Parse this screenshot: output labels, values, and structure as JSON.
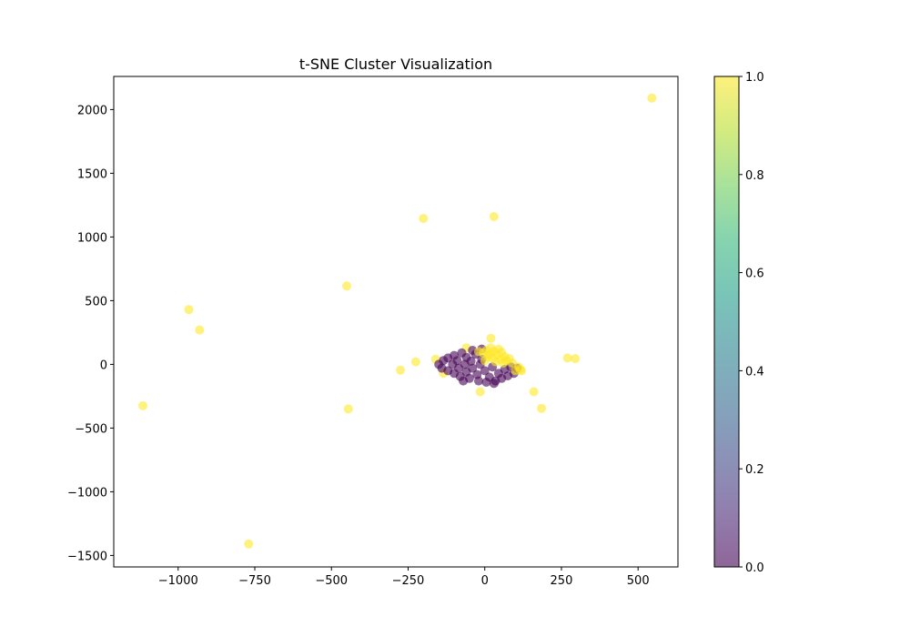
{
  "chart_data": {
    "type": "scatter",
    "title": "t-SNE Cluster Visualization",
    "xlabel": "",
    "ylabel": "",
    "xlim": [
      -1210,
      630
    ],
    "ylim": [
      -1590,
      2260
    ],
    "xticks": [
      -1000,
      -750,
      -500,
      -250,
      0,
      250,
      500
    ],
    "xtick_labels": [
      "−1000",
      "−750",
      "−500",
      "−250",
      "0",
      "250",
      "500"
    ],
    "yticks": [
      -1500,
      -1000,
      -500,
      0,
      500,
      1000,
      1500,
      2000
    ],
    "ytick_labels": [
      "−1500",
      "−1000",
      "−500",
      "0",
      "500",
      "1000",
      "1500",
      "2000"
    ],
    "grid": false,
    "marker_alpha": 0.6,
    "colorbar": {
      "colormap": "viridis",
      "range": [
        0.0,
        1.0
      ],
      "ticks": [
        0.0,
        0.2,
        0.4,
        0.6,
        0.8,
        1.0
      ],
      "tick_labels": [
        "0.0",
        "0.2",
        "0.4",
        "0.6",
        "0.8",
        "1.0"
      ],
      "colors": [
        "#440154",
        "#482878",
        "#3e4989",
        "#31688e",
        "#26828e",
        "#1f9e89",
        "#35b779",
        "#6ece58",
        "#b5de2b",
        "#fde725"
      ]
    },
    "points": [
      {
        "x": 545,
        "y": 2090,
        "c": 1
      },
      {
        "x": 30,
        "y": 1160,
        "c": 1
      },
      {
        "x": -200,
        "y": 1145,
        "c": 1
      },
      {
        "x": -450,
        "y": 615,
        "c": 1
      },
      {
        "x": -965,
        "y": 430,
        "c": 1
      },
      {
        "x": -930,
        "y": 270,
        "c": 1
      },
      {
        "x": -1115,
        "y": -325,
        "c": 1
      },
      {
        "x": -445,
        "y": -350,
        "c": 1
      },
      {
        "x": -770,
        "y": -1410,
        "c": 1
      },
      {
        "x": -275,
        "y": -45,
        "c": 1
      },
      {
        "x": -225,
        "y": 20,
        "c": 1
      },
      {
        "x": 270,
        "y": 50,
        "c": 1
      },
      {
        "x": 295,
        "y": 45,
        "c": 1
      },
      {
        "x": 160,
        "y": -215,
        "c": 1
      },
      {
        "x": 185,
        "y": -345,
        "c": 1
      },
      {
        "x": 20,
        "y": 205,
        "c": 1
      },
      {
        "x": -15,
        "y": -215,
        "c": 1
      },
      {
        "x": -160,
        "y": 40,
        "c": 1
      },
      {
        "x": -135,
        "y": -70,
        "c": 1
      },
      {
        "x": -60,
        "y": 130,
        "c": 1
      },
      {
        "x": 120,
        "y": -50,
        "c": 1
      },
      {
        "x": -150,
        "y": 0,
        "c": 0
      },
      {
        "x": -140,
        "y": -30,
        "c": 0
      },
      {
        "x": -135,
        "y": 30,
        "c": 0
      },
      {
        "x": -120,
        "y": -50,
        "c": 0
      },
      {
        "x": -120,
        "y": 50,
        "c": 0
      },
      {
        "x": -105,
        "y": 0,
        "c": 0
      },
      {
        "x": -100,
        "y": -70,
        "c": 0
      },
      {
        "x": -100,
        "y": 70,
        "c": 0
      },
      {
        "x": -90,
        "y": 30,
        "c": 0
      },
      {
        "x": -85,
        "y": -30,
        "c": 0
      },
      {
        "x": -80,
        "y": -95,
        "c": 0
      },
      {
        "x": -75,
        "y": 90,
        "c": 0
      },
      {
        "x": -65,
        "y": 0,
        "c": 0
      },
      {
        "x": -60,
        "y": -60,
        "c": 0
      },
      {
        "x": -60,
        "y": 55,
        "c": 0
      },
      {
        "x": -50,
        "y": -110,
        "c": 0
      },
      {
        "x": -45,
        "y": 25,
        "c": 0
      },
      {
        "x": -40,
        "y": -30,
        "c": 0
      },
      {
        "x": -30,
        "y": 80,
        "c": 0
      },
      {
        "x": -25,
        "y": -80,
        "c": 0
      },
      {
        "x": -20,
        "y": -130,
        "c": 0
      },
      {
        "x": -15,
        "y": 0,
        "c": 0
      },
      {
        "x": -10,
        "y": 40,
        "c": 0
      },
      {
        "x": 0,
        "y": -50,
        "c": 0
      },
      {
        "x": 5,
        "y": -140,
        "c": 0
      },
      {
        "x": 15,
        "y": -100,
        "c": 0
      },
      {
        "x": 25,
        "y": -20,
        "c": 0
      },
      {
        "x": 35,
        "y": -130,
        "c": 0
      },
      {
        "x": 45,
        "y": -70,
        "c": 0
      },
      {
        "x": 55,
        "y": -110,
        "c": 0
      },
      {
        "x": 65,
        "y": -40,
        "c": 0
      },
      {
        "x": 75,
        "y": -90,
        "c": 0
      },
      {
        "x": 85,
        "y": -20,
        "c": 0
      },
      {
        "x": 95,
        "y": -70,
        "c": 0
      },
      {
        "x": 105,
        "y": -30,
        "c": 0
      },
      {
        "x": -40,
        "y": 110,
        "c": 0
      },
      {
        "x": -10,
        "y": 120,
        "c": 0
      },
      {
        "x": 30,
        "y": -150,
        "c": 0
      },
      {
        "x": -70,
        "y": -130,
        "c": 0
      },
      {
        "x": -5,
        "y": 90,
        "c": 1
      },
      {
        "x": 5,
        "y": 110,
        "c": 1
      },
      {
        "x": 15,
        "y": 80,
        "c": 1
      },
      {
        "x": 20,
        "y": 130,
        "c": 1
      },
      {
        "x": 25,
        "y": 50,
        "c": 1
      },
      {
        "x": 30,
        "y": 100,
        "c": 1
      },
      {
        "x": 35,
        "y": 20,
        "c": 1
      },
      {
        "x": 40,
        "y": 75,
        "c": 1
      },
      {
        "x": 45,
        "y": 120,
        "c": 1
      },
      {
        "x": 50,
        "y": 40,
        "c": 1
      },
      {
        "x": 55,
        "y": 95,
        "c": 1
      },
      {
        "x": 60,
        "y": 10,
        "c": 1
      },
      {
        "x": 65,
        "y": 60,
        "c": 1
      },
      {
        "x": 70,
        "y": 30,
        "c": 1
      },
      {
        "x": 80,
        "y": 45,
        "c": 1
      },
      {
        "x": 90,
        "y": 10,
        "c": 1
      },
      {
        "x": 10,
        "y": 60,
        "c": 1
      },
      {
        "x": 0,
        "y": 30,
        "c": 1
      },
      {
        "x": -20,
        "y": 100,
        "c": 1
      },
      {
        "x": 110,
        "y": -20,
        "c": 1
      },
      {
        "x": 115,
        "y": -40,
        "c": 1
      },
      {
        "x": 100,
        "y": -50,
        "c": 1
      }
    ]
  }
}
